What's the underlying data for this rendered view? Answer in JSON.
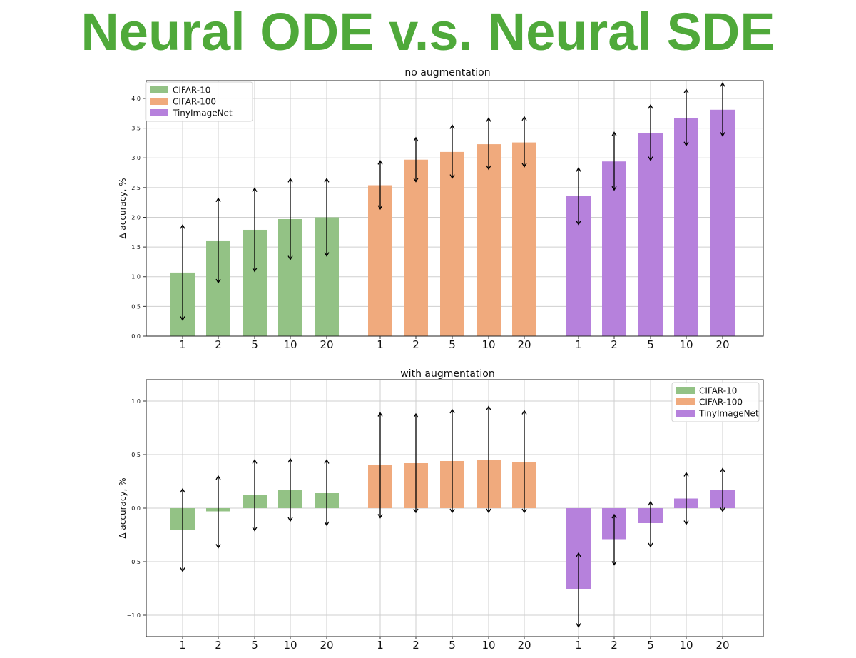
{
  "slide": {
    "title": "Neural ODE v.s. Neural SDE"
  },
  "chart_data": [
    {
      "type": "bar",
      "title": "no augmentation",
      "ylabel": "Δ accuracy, %",
      "ylim": [
        0.0,
        4.3
      ],
      "yticks": [
        0.0,
        0.5,
        1.0,
        1.5,
        2.0,
        2.5,
        3.0,
        3.5,
        4.0
      ],
      "grid": true,
      "legend_position": "top-left",
      "categories": [
        "1",
        "2",
        "5",
        "10",
        "20"
      ],
      "series": [
        {
          "name": "CIFAR-10",
          "color": "#93c285",
          "values": [
            1.07,
            1.61,
            1.79,
            1.97,
            2.0
          ],
          "err_low": [
            0.27,
            0.9,
            1.09,
            1.29,
            1.35
          ],
          "err_high": [
            1.87,
            2.32,
            2.49,
            2.65,
            2.65
          ]
        },
        {
          "name": "CIFAR-100",
          "color": "#f0aa7d",
          "values": [
            2.54,
            2.97,
            3.1,
            3.23,
            3.26
          ],
          "err_low": [
            2.14,
            2.6,
            2.66,
            2.81,
            2.85
          ],
          "err_high": [
            2.95,
            3.34,
            3.55,
            3.67,
            3.69
          ]
        },
        {
          "name": "TinyImageNet",
          "color": "#b681dc",
          "values": [
            2.36,
            2.94,
            3.42,
            3.67,
            3.81
          ],
          "err_low": [
            1.88,
            2.46,
            2.96,
            3.21,
            3.37
          ],
          "err_high": [
            2.83,
            3.43,
            3.89,
            4.15,
            4.26
          ]
        }
      ]
    },
    {
      "type": "bar",
      "title": "with augmentation",
      "ylabel": "Δ accuracy, %",
      "ylim": [
        -1.2,
        1.2
      ],
      "yticks": [
        -1.0,
        -0.5,
        0.0,
        0.5,
        1.0
      ],
      "ytick_labels": [
        "−1.0",
        "−0.5",
        "0.0",
        "0.5",
        "1.0"
      ],
      "grid": true,
      "legend_position": "top-right",
      "categories": [
        "1",
        "2",
        "5",
        "10",
        "20"
      ],
      "series": [
        {
          "name": "CIFAR-10",
          "color": "#93c285",
          "values": [
            -0.2,
            -0.03,
            0.12,
            0.17,
            0.14
          ],
          "err_low": [
            -0.59,
            -0.37,
            -0.21,
            -0.12,
            -0.16
          ],
          "err_high": [
            0.18,
            0.3,
            0.45,
            0.46,
            0.45
          ]
        },
        {
          "name": "CIFAR-100",
          "color": "#f0aa7d",
          "values": [
            0.4,
            0.42,
            0.44,
            0.45,
            0.43
          ],
          "err_low": [
            -0.09,
            -0.04,
            -0.04,
            -0.04,
            -0.04
          ],
          "err_high": [
            0.89,
            0.88,
            0.92,
            0.95,
            0.91
          ]
        },
        {
          "name": "TinyImageNet",
          "color": "#b681dc",
          "values": [
            -0.76,
            -0.29,
            -0.14,
            0.09,
            0.17
          ],
          "err_low": [
            -1.11,
            -0.53,
            -0.36,
            -0.15,
            -0.03
          ],
          "err_high": [
            -0.42,
            -0.06,
            0.06,
            0.33,
            0.37
          ]
        }
      ]
    }
  ]
}
